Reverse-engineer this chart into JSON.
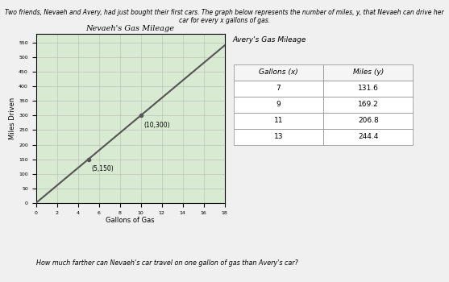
{
  "title_top": "Two friends, Nevaeh and Avery, had just bought their first cars. The graph below represents the number of miles, y, that Nevaeh can drive her car for every x gallons of gas.",
  "graph_title": "Nevaeh's Gas Mileage",
  "xlabel": "Gallons of Gas",
  "ylabel": "Miles Driven",
  "line_x": [
    0,
    18
  ],
  "line_y": [
    0,
    540
  ],
  "point1": [
    5,
    150
  ],
  "point2": [
    10,
    300
  ],
  "xlim": [
    0,
    18
  ],
  "ylim": [
    0,
    580
  ],
  "xticks": [
    0,
    2,
    4,
    6,
    8,
    10,
    12,
    14,
    16,
    18
  ],
  "yticks": [
    0,
    50,
    100,
    150,
    200,
    250,
    300,
    350,
    400,
    450,
    500,
    550
  ],
  "table_title": "Avery's Gas Mileage",
  "table_col_headers": [
    "Gallons (x)",
    "Miles (y)"
  ],
  "table_data": [
    [
      7,
      131.6
    ],
    [
      9,
      169.2
    ],
    [
      11,
      206.8
    ],
    [
      13,
      244.4
    ]
  ],
  "bottom_text": "How much farther can Nevaeh's car travel on one gallon of gas than Avery's car?",
  "line_color": "#555555",
  "graph_bg": "#d9ead3",
  "grid_color": "#aaaaaa",
  "table_header_bg": "#ffffff",
  "table_cell_bg": "#ffffff"
}
